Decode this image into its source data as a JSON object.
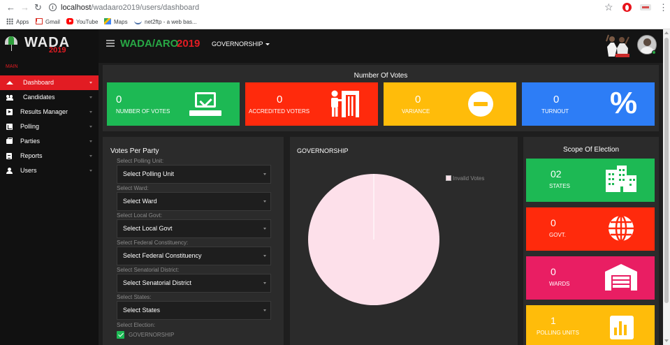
{
  "browser": {
    "url_host": "localhost",
    "url_path": "/wadaaro2019/users/dashboard",
    "bookmarks": [
      {
        "label": "Apps",
        "icon": "apps-grid-icon"
      },
      {
        "label": "Gmail",
        "icon": "gmail-icon"
      },
      {
        "label": "YouTube",
        "icon": "youtube-icon"
      },
      {
        "label": "Maps",
        "icon": "maps-icon"
      },
      {
        "label": "net2ftp - a web bas...",
        "icon": "net2ftp-icon"
      }
    ]
  },
  "app": {
    "logo_word": "WADA",
    "logo_year": "2019",
    "brand_a": "WADA/ARO",
    "brand_b": "2019",
    "election_dropdown": "GOVERNORSHIP"
  },
  "sidebar": {
    "header": "MAIN",
    "items": [
      {
        "label": "Dashboard",
        "icon": "dashboard-icon",
        "active": true
      },
      {
        "label": "Candidates",
        "icon": "candidates-icon",
        "active": false
      },
      {
        "label": "Results Manager",
        "icon": "results-icon",
        "active": false
      },
      {
        "label": "Polling",
        "icon": "polling-icon",
        "active": false
      },
      {
        "label": "Parties",
        "icon": "parties-icon",
        "active": false
      },
      {
        "label": "Reports",
        "icon": "reports-icon",
        "active": false
      },
      {
        "label": "Users",
        "icon": "users-icon",
        "active": false
      }
    ]
  },
  "votes": {
    "title": "Number Of Votes",
    "cards": [
      {
        "value": "0",
        "label": "NUMBER OF VOTES",
        "color": "#1db954",
        "icon": "ballot-check-icon"
      },
      {
        "value": "0",
        "label": "ACCREDITED VOTERS",
        "color": "#ff2a0c",
        "icon": "voting-booth-icon"
      },
      {
        "value": "0",
        "label": "VARIANCE",
        "color": "#ffbc0a",
        "icon": "minus-circle-icon"
      },
      {
        "value": "0",
        "label": "TURNOUT",
        "color": "#2d7df6",
        "icon": "percent-icon"
      }
    ]
  },
  "party": {
    "title": "Votes Per Party",
    "fields": [
      {
        "label": "Select Polling Unit:",
        "value": "Select Polling Unit"
      },
      {
        "label": "Select Ward:",
        "value": "Select Ward"
      },
      {
        "label": "Select Local Govt:",
        "value": "Select Local Govt"
      },
      {
        "label": "Select Federal Constituency:",
        "value": "Select Federal Constituency"
      },
      {
        "label": "Select Senatorial District:",
        "value": "Select Senatorial District"
      },
      {
        "label": "Select States:",
        "value": "Select States"
      }
    ],
    "election_label": "Select Election:",
    "election_option": "GOVERNORSHIP"
  },
  "governorship_chart": {
    "title": "GOVERNORSHIP"
  },
  "chart_data": {
    "type": "pie",
    "title": "GOVERNORSHIP",
    "legend_position": "top-right",
    "series": [
      {
        "name": "Invalid Votes",
        "value": 100,
        "color": "#fde0ea"
      }
    ]
  },
  "scope": {
    "title": "Scope Of Election",
    "cards": [
      {
        "value": "02",
        "label": "STATES",
        "color": "#1db954",
        "icon": "buildings-icon"
      },
      {
        "value": "0",
        "label": "GOVT.",
        "color": "#ff2a0c",
        "icon": "globe-icon"
      },
      {
        "value": "0",
        "label": "WARDS",
        "color": "#e91e63",
        "icon": "warehouse-icon"
      },
      {
        "value": "1",
        "label": "POLLING UNITS",
        "color": "#ffbc0a",
        "icon": "bar-chart-icon"
      }
    ]
  }
}
